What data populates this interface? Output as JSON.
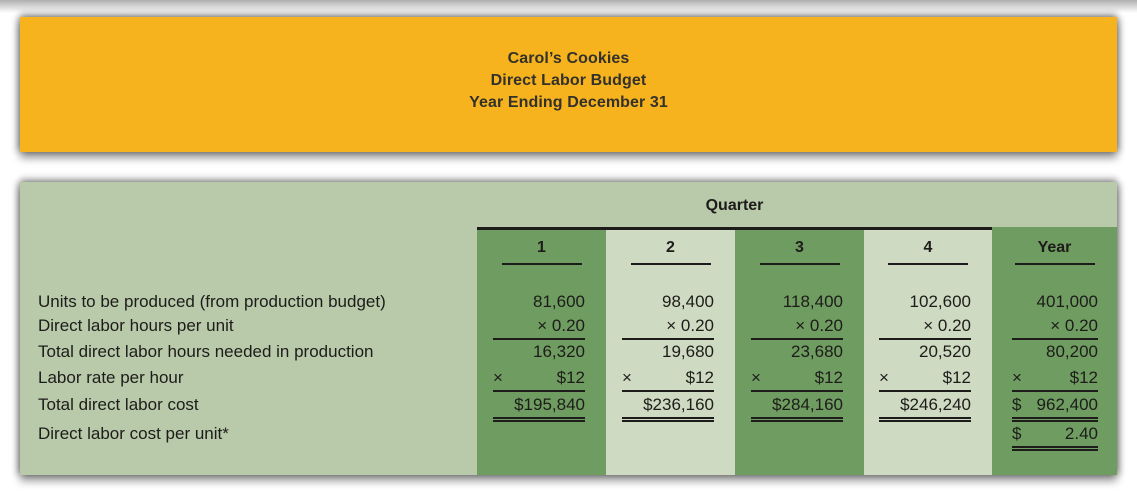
{
  "banner": {
    "line1": "Carol’s Cookies",
    "line2": "Direct Labor Budget",
    "line3": "Year Ending December 31"
  },
  "table": {
    "quarter_header": "Quarter",
    "columns": [
      "1",
      "2",
      "3",
      "4",
      "Year"
    ],
    "rows": [
      {
        "label": "Units to be produced (from production budget)",
        "values": [
          "81,600",
          "98,400",
          "118,400",
          "102,600",
          "401,000"
        ]
      },
      {
        "label": "Direct labor hours per unit",
        "values": [
          "× 0.20",
          "× 0.20",
          "× 0.20",
          "× 0.20",
          "× 0.20"
        ],
        "underline": "single"
      },
      {
        "label": "Total direct labor hours needed in production",
        "values": [
          "16,320",
          "19,680",
          "23,680",
          "20,520",
          "80,200"
        ]
      },
      {
        "label": "Labor rate per hour",
        "prefix": "×",
        "values": [
          "$12",
          "$12",
          "$12",
          "$12",
          "$12"
        ],
        "underline": "single"
      },
      {
        "label": "Total direct labor cost",
        "values": [
          "$195,840",
          "$236,160",
          "$284,160",
          "$246,240"
        ],
        "year_prefix": "$",
        "year_value": "962,400",
        "underline": "double"
      },
      {
        "label": "Direct labor cost per unit*",
        "year_prefix": "$",
        "year_value": "2.40",
        "underline": "double-year-only"
      }
    ]
  },
  "colors": {
    "banner_gold": "#F6B31D",
    "banner_text": "#33312C",
    "table_background": "#B8CAA9",
    "column_stripe_dark": "#6F9C60",
    "column_stripe_light": "#CEDAC1",
    "text_ink": "#1D1C1A"
  }
}
